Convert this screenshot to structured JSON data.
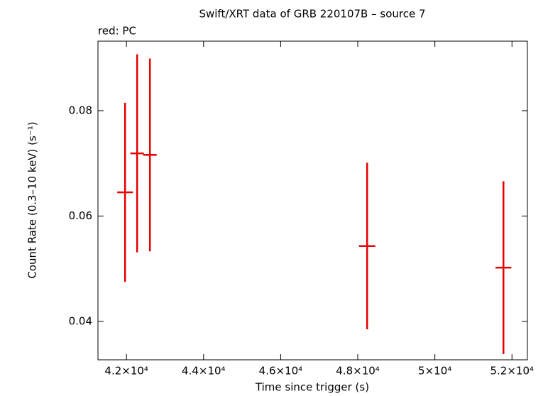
{
  "chart_data": {
    "type": "errorbar",
    "title": "Swift/XRT data of GRB 220107B – source 7",
    "subtitle": "red: PC",
    "x_label": "Time since trigger (s)",
    "y_label": "Count Rate (0.3–10 keV) (s⁻¹)",
    "xlim": [
      41260,
      52400
    ],
    "ylim": [
      0.0327,
      0.0932
    ],
    "xticks": [
      {
        "value": 42000,
        "label": "4.2×10⁴"
      },
      {
        "value": 44000,
        "label": "4.4×10⁴"
      },
      {
        "value": 46000,
        "label": "4.6×10⁴"
      },
      {
        "value": 48000,
        "label": "4.8×10⁴"
      },
      {
        "value": 50000,
        "label": "5×10⁴"
      },
      {
        "value": 52000,
        "label": "5.2×10⁴"
      }
    ],
    "yticks": [
      0.04,
      0.06,
      0.08
    ],
    "series": [
      {
        "name": "PC",
        "color": "#e60000",
        "x": [
          41963,
          42276,
          42608,
          48243,
          51779
        ],
        "xerr": [
          203,
          175,
          175,
          210,
          205
        ],
        "values": [
          0.0645,
          0.0719,
          0.0716,
          0.0543,
          0.0502
        ],
        "yerr": [
          0.017,
          0.0188,
          0.0183,
          0.0158,
          0.0164
        ]
      }
    ]
  }
}
